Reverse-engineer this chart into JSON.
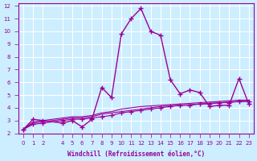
{
  "xlabel": "Windchill (Refroidissement éolien,°C)",
  "x_values": [
    0,
    1,
    2,
    4,
    5,
    6,
    7,
    8,
    9,
    10,
    11,
    12,
    13,
    14,
    15,
    16,
    17,
    18,
    19,
    20,
    21,
    22,
    23
  ],
  "y_main": [
    2.3,
    3.1,
    3.0,
    2.8,
    3.0,
    2.5,
    3.1,
    5.6,
    4.8,
    9.8,
    11.0,
    11.8,
    10.0,
    9.7,
    6.2,
    5.1,
    5.4,
    5.2,
    4.1,
    4.2,
    4.2,
    6.3,
    4.3
  ],
  "y_line1": [
    2.3,
    2.7,
    2.8,
    3.0,
    3.1,
    3.1,
    3.2,
    3.3,
    3.4,
    3.6,
    3.7,
    3.8,
    3.9,
    4.0,
    4.1,
    4.2,
    4.2,
    4.3,
    4.3,
    4.4,
    4.4,
    4.5,
    4.5
  ],
  "y_line2": [
    2.3,
    2.8,
    2.9,
    3.1,
    3.2,
    3.2,
    3.3,
    3.5,
    3.6,
    3.7,
    3.8,
    3.9,
    4.0,
    4.1,
    4.15,
    4.2,
    4.25,
    4.3,
    4.35,
    4.4,
    4.45,
    4.5,
    4.5
  ],
  "y_line3": [
    2.3,
    2.9,
    3.0,
    3.2,
    3.3,
    3.3,
    3.4,
    3.6,
    3.7,
    3.9,
    4.0,
    4.1,
    4.15,
    4.2,
    4.25,
    4.3,
    4.35,
    4.4,
    4.45,
    4.5,
    4.55,
    4.6,
    4.6
  ],
  "line_color": "#990099",
  "bg_color": "#cceeff",
  "grid_color": "#ffffff",
  "ylim": [
    2,
    12
  ],
  "xlim": [
    0,
    23
  ],
  "yticks": [
    2,
    3,
    4,
    5,
    6,
    7,
    8,
    9,
    10,
    11,
    12
  ],
  "xticks": [
    0,
    1,
    2,
    4,
    5,
    6,
    7,
    8,
    9,
    10,
    11,
    12,
    13,
    14,
    15,
    16,
    17,
    18,
    19,
    20,
    21,
    22,
    23
  ]
}
